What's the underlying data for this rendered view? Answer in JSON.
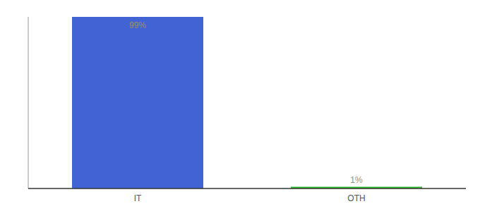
{
  "chart_data": {
    "type": "bar",
    "categories": [
      "IT",
      "OTH"
    ],
    "values": [
      99,
      1
    ],
    "colors": [
      "#4163d4",
      "#2db82d"
    ],
    "value_labels": [
      "99%",
      "1%"
    ],
    "data_labels": true,
    "ylim": [
      0,
      99
    ],
    "tick_labels": "x"
  }
}
